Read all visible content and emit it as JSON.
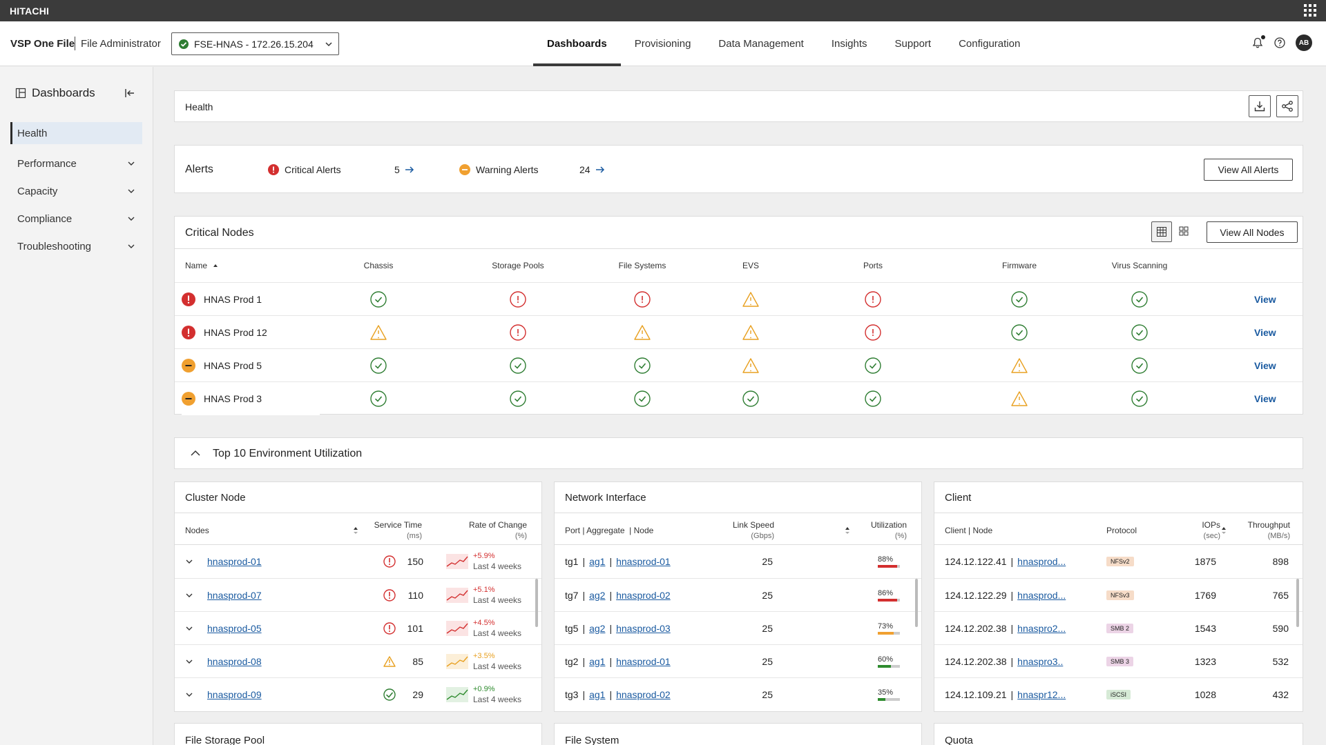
{
  "topbar": {
    "brand": "HITACHI"
  },
  "header": {
    "product": "VSP One File",
    "role": "File Administrator",
    "system": "FSE-HNAS - 172.26.15.204",
    "tabs": [
      "Dashboards",
      "Provisioning",
      "Data Management",
      "Insights",
      "Support",
      "Configuration"
    ],
    "active_tab": "Dashboards",
    "avatar": "AB"
  },
  "sidebar": {
    "title": "Dashboards",
    "items": [
      {
        "label": "Health",
        "active": true
      },
      {
        "label": "Performance"
      },
      {
        "label": "Capacity"
      },
      {
        "label": "Compliance"
      },
      {
        "label": "Troubleshooting"
      }
    ]
  },
  "health": {
    "title": "Health"
  },
  "alerts": {
    "title": "Alerts",
    "critical_label": "Critical Alerts",
    "critical_count": "5",
    "warning_label": "Warning Alerts",
    "warning_count": "24",
    "view_all": "View All Alerts"
  },
  "critical_nodes": {
    "title": "Critical Nodes",
    "view_all": "View All Nodes",
    "columns": [
      "Name",
      "Chassis",
      "Storage Pools",
      "File Systems",
      "EVS",
      "Ports",
      "Firmware",
      "Virus Scanning"
    ],
    "view_label": "View",
    "rows": [
      {
        "name": "HNAS Prod 1",
        "severity": "critical",
        "statuses": [
          "ok",
          "critical",
          "critical",
          "warning",
          "critical",
          "ok",
          "ok"
        ]
      },
      {
        "name": "HNAS Prod 12",
        "severity": "critical",
        "statuses": [
          "warning",
          "critical",
          "warning",
          "warning",
          "critical",
          "ok",
          "ok"
        ]
      },
      {
        "name": "HNAS Prod 5",
        "severity": "major",
        "statuses": [
          "ok",
          "ok",
          "ok",
          "warning",
          "ok",
          "warning",
          "ok"
        ]
      },
      {
        "name": "HNAS Prod 3",
        "severity": "major",
        "statuses": [
          "ok",
          "ok",
          "ok",
          "ok",
          "ok",
          "warning",
          "ok"
        ]
      }
    ]
  },
  "utilization": {
    "title": "Top 10 Environment Utilization"
  },
  "cluster_node": {
    "title": "Cluster Node",
    "col_nodes": "Nodes",
    "col_service": "Service Time",
    "col_service_unit": "(ms)",
    "col_rate": "Rate of Change",
    "col_rate_unit": "(%)",
    "rows": [
      {
        "node": "hnasprod-01",
        "status": "critical",
        "service": "150",
        "rate": "+5.9%",
        "period": "Last 4 weeks",
        "trend": "red"
      },
      {
        "node": "hnasprod-07",
        "status": "critical",
        "service": "110",
        "rate": "+5.1%",
        "period": "Last 4 weeks",
        "trend": "red"
      },
      {
        "node": "hnasprod-05",
        "status": "critical",
        "service": "101",
        "rate": "+4.5%",
        "period": "Last 4 weeks",
        "trend": "red"
      },
      {
        "node": "hnasprod-08",
        "status": "warning",
        "service": "85",
        "rate": "+3.5%",
        "period": "Last 4 weeks",
        "trend": "orange"
      },
      {
        "node": "hnasprod-09",
        "status": "ok",
        "service": "29",
        "rate": "+0.9%",
        "period": "Last 4 weeks",
        "trend": "green"
      }
    ]
  },
  "network_interface": {
    "title": "Network Interface",
    "col_port": "Port | Aggregate  | Node",
    "col_speed": "Link Speed",
    "col_speed_unit": "(Gbps)",
    "col_util": "Utilization",
    "col_util_unit": "(%)",
    "rows": [
      {
        "port": "tg1",
        "aggregate": "ag1",
        "node": "hnasprod-01",
        "speed": "25",
        "util": "88%",
        "util_value": 0.88,
        "color": "#d32f2f"
      },
      {
        "port": "tg7",
        "aggregate": "ag2",
        "node": "hnasprod-02",
        "speed": "25",
        "util": "86%",
        "util_value": 0.86,
        "color": "#d32f2f"
      },
      {
        "port": "tg5",
        "aggregate": "ag2",
        "node": "hnasprod-03",
        "speed": "25",
        "util": "73%",
        "util_value": 0.73,
        "color": "#f0a030"
      },
      {
        "port": "tg2",
        "aggregate": "ag1",
        "node": "hnasprod-01",
        "speed": "25",
        "util": "60%",
        "util_value": 0.6,
        "color": "#2e8b2e"
      },
      {
        "port": "tg3",
        "aggregate": "ag1",
        "node": "hnasprod-02",
        "speed": "25",
        "util": "35%",
        "util_value": 0.35,
        "color": "#2e8b2e"
      }
    ]
  },
  "client": {
    "title": "Client",
    "col_client": "Client | Node",
    "col_protocol": "Protocol",
    "col_iops": "IOPs",
    "col_iops_unit": "(sec)",
    "col_tp": "Throughput",
    "col_tp_unit": "(MB/s)",
    "rows": [
      {
        "client": "124.12.122.41",
        "node": "hnasprod...",
        "protocol": "NFSv2",
        "iops": "1875",
        "tp": "898",
        "pill_bg": "#f6dcc8"
      },
      {
        "client": "124.12.122.29",
        "node": "hnasprod...",
        "protocol": "NFSv3",
        "iops": "1769",
        "tp": "765",
        "pill_bg": "#f6dcc8"
      },
      {
        "client": "124.12.202.38",
        "node": "hnaspro2...",
        "protocol": "SMB 2",
        "iops": "1543",
        "tp": "590",
        "pill_bg": "#ecd4e6"
      },
      {
        "client": "124.12.202.38",
        "node": "hnaspro3..",
        "protocol": "SMB 3",
        "iops": "1323",
        "tp": "532",
        "pill_bg": "#ecd4e6"
      },
      {
        "client": "124.12.109.21",
        "node": "hnaspr12...",
        "protocol": "iSCSI",
        "iops": "1028",
        "tp": "432",
        "pill_bg": "#d6ead6"
      }
    ]
  },
  "bottom_cards": [
    "File Storage Pool",
    "File System",
    "Quota"
  ],
  "colors": {
    "critical": "#d32f2f",
    "warning": "#e8a020",
    "ok": "#2e7d32",
    "link": "#1a5aa0"
  }
}
